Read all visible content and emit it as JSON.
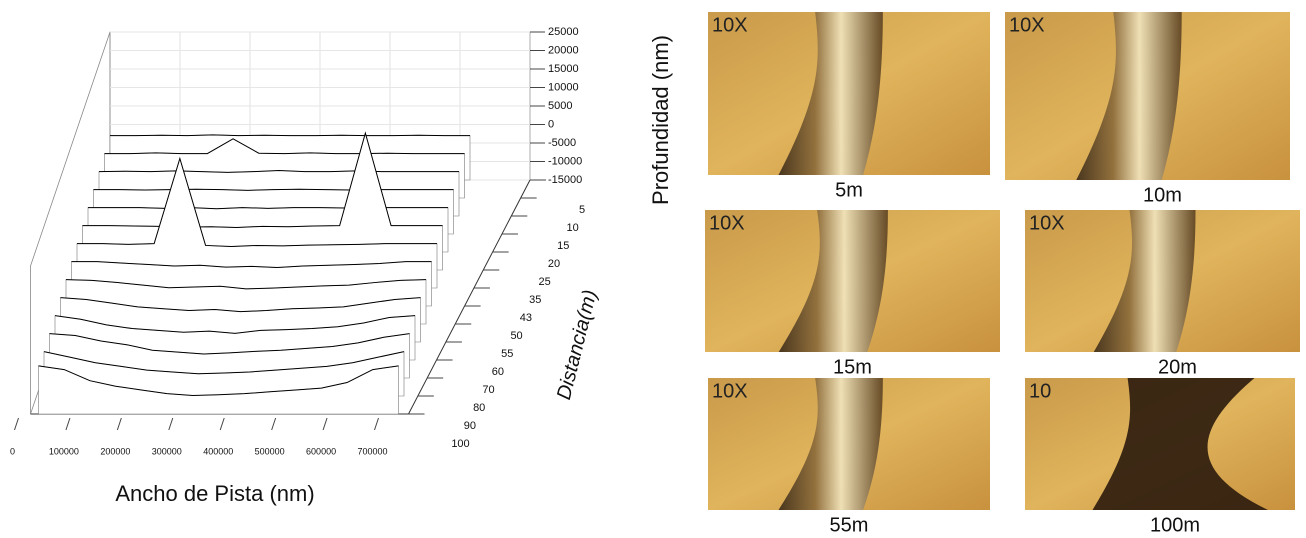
{
  "chart_data": {
    "type": "waterfall3d",
    "title_y": "Profundidad  (nm)",
    "title_x": "Ancho de Pista (nm)",
    "title_z": "Distancia(m)",
    "color": "#000000",
    "x": [
      0,
      50000,
      100000,
      150000,
      200000,
      250000,
      300000,
      350000,
      400000,
      450000,
      500000,
      550000,
      600000,
      650000,
      700000
    ],
    "xlim": [
      0,
      700000
    ],
    "xticks": [
      0,
      100000,
      200000,
      300000,
      400000,
      500000,
      600000,
      700000
    ],
    "ylim": [
      -15000,
      25000
    ],
    "yticks": [
      -15000,
      -10000,
      -5000,
      0,
      5000,
      10000,
      15000,
      20000,
      25000
    ],
    "zticks": [
      5,
      10,
      15,
      20,
      25,
      35,
      43,
      50,
      55,
      60,
      70,
      80,
      90,
      100
    ],
    "series": [
      {
        "values": [
          -3000,
          -3000,
          -2900,
          -3000,
          -2800,
          -3000,
          -2900,
          -3000,
          -3000,
          -2900,
          -3000,
          -3000,
          -2900,
          -3000,
          -3000
        ]
      },
      {
        "values": [
          -3000,
          -3000,
          -2800,
          -3000,
          -3000,
          1000,
          -2900,
          -3000,
          -2800,
          -3000,
          -3000,
          -2900,
          -3000,
          -3000,
          -3000
        ]
      },
      {
        "values": [
          -3000,
          -2900,
          -3000,
          -2800,
          -3000,
          -3200,
          -3000,
          -2700,
          -3000,
          -3000,
          -2800,
          -3000,
          -3000,
          -3000,
          -3000
        ]
      },
      {
        "values": [
          -3000,
          -3000,
          -3100,
          -3000,
          -2900,
          -3000,
          -3200,
          -3000,
          -2900,
          -3000,
          -3100,
          -3000,
          -3000,
          -3000,
          -3000
        ]
      },
      {
        "values": [
          -3000,
          -3000,
          -3000,
          -3200,
          -3000,
          -3300,
          -3000,
          -3200,
          -3000,
          -3000,
          -3100,
          -3000,
          -3000,
          -3000,
          -3000
        ]
      },
      {
        "values": [
          -3000,
          -3000,
          -3100,
          -3200,
          -3400,
          -3300,
          -3500,
          -3200,
          -3300,
          -3100,
          -3000,
          22000,
          -3000,
          -3000,
          -3000
        ]
      },
      {
        "values": [
          -3000,
          -3000,
          -3200,
          -3000,
          20000,
          -3500,
          -3800,
          -3500,
          -3600,
          -3400,
          -3300,
          -3200,
          -3000,
          -3000,
          -3000
        ]
      },
      {
        "values": [
          -3000,
          -3000,
          -3400,
          -3800,
          -4200,
          -4000,
          -4500,
          -4300,
          -4600,
          -4200,
          -4000,
          -3800,
          -3500,
          -3000,
          -3000
        ]
      },
      {
        "values": [
          -3000,
          -3200,
          -3800,
          -4500,
          -5200,
          -5000,
          -4800,
          -5500,
          -5300,
          -5000,
          -4700,
          -4500,
          -3800,
          -3200,
          -3000
        ]
      },
      {
        "values": [
          -3000,
          -3500,
          -4500,
          -5500,
          -6000,
          -6500,
          -6200,
          -6800,
          -6500,
          -6000,
          -5800,
          -5500,
          -4500,
          -3500,
          -3000
        ]
      },
      {
        "values": [
          -3000,
          -4000,
          -5500,
          -6500,
          -7000,
          -7500,
          -7200,
          -7800,
          -7000,
          -6800,
          -6500,
          -6000,
          -5000,
          -3500,
          -3000
        ]
      },
      {
        "values": [
          -3000,
          -3500,
          -5000,
          -6000,
          -7500,
          -8000,
          -8500,
          -8200,
          -7800,
          -7500,
          -7000,
          -6500,
          -5500,
          -4000,
          -3000
        ]
      },
      {
        "values": [
          -3000,
          -4500,
          -6000,
          -7000,
          -8000,
          -8500,
          -9000,
          -8800,
          -8500,
          -8000,
          -7500,
          -7000,
          -6000,
          -4500,
          -3000
        ]
      },
      {
        "values": [
          -2000,
          -3000,
          -6000,
          -7500,
          -8500,
          -9500,
          -10000,
          -9800,
          -9500,
          -9000,
          -8500,
          -8000,
          -6500,
          -3000,
          -2000
        ]
      }
    ]
  },
  "micrographs": [
    {
      "magnification": "10X",
      "caption": "5m"
    },
    {
      "magnification": "10X",
      "caption": "10m"
    },
    {
      "magnification": "10X",
      "caption": "15m"
    },
    {
      "magnification": "10X",
      "caption": "20m"
    },
    {
      "magnification": "10X",
      "caption": "55m"
    },
    {
      "magnification": "10",
      "caption": "100m"
    }
  ]
}
